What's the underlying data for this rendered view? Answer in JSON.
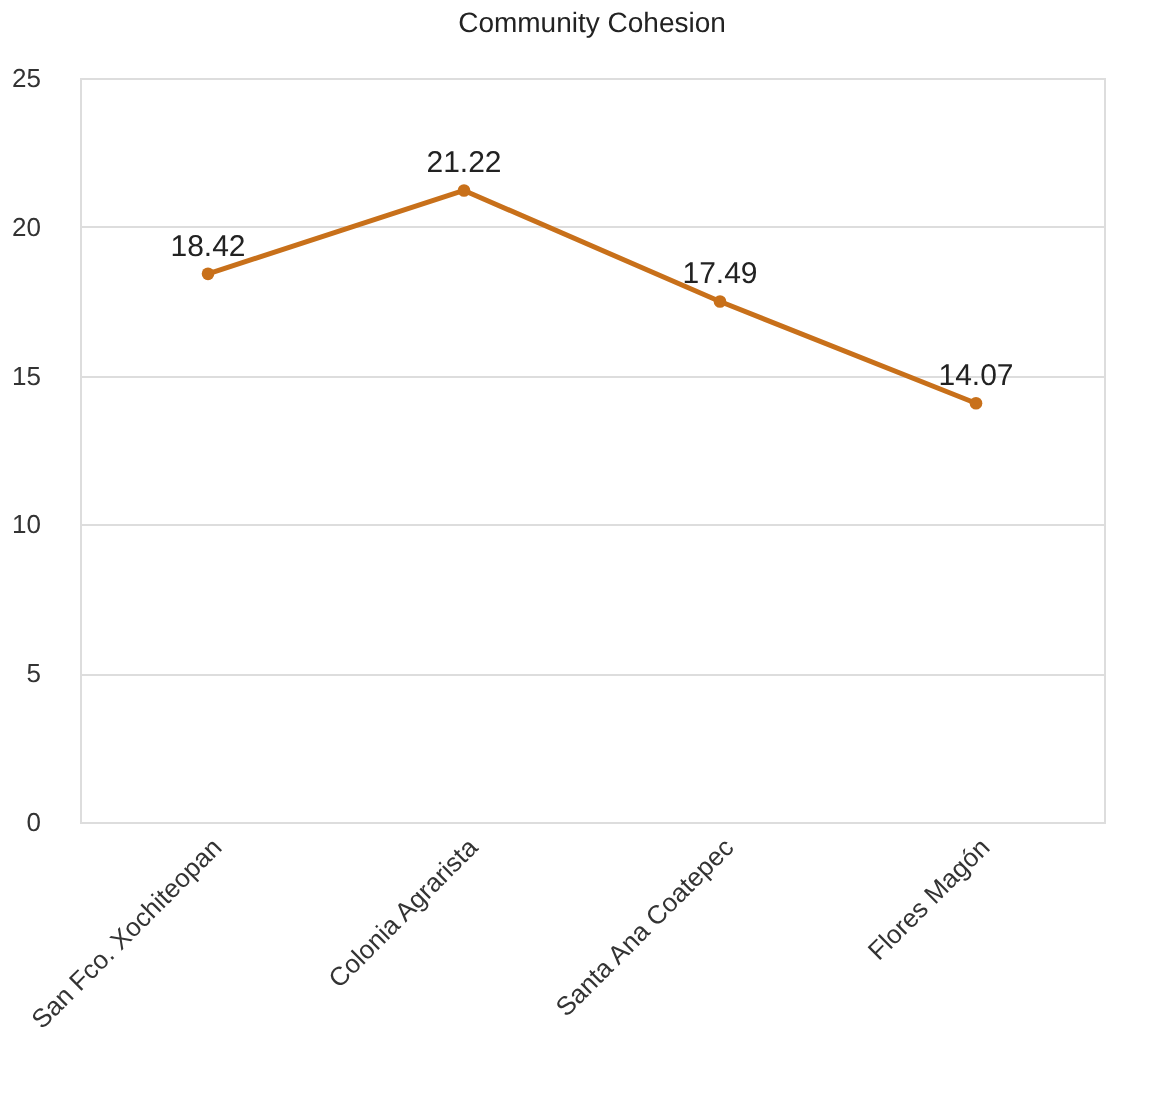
{
  "chart_data": {
    "type": "line",
    "title": "Community Cohesion",
    "categories": [
      "San Fco. Xochiteopan",
      "Colonia Agrarista",
      "Santa Ana Coatepec",
      "Flores Magón"
    ],
    "series": [
      {
        "color": "#c8701a",
        "values": [
          18.42,
          21.22,
          17.49,
          14.07
        ]
      }
    ],
    "ylim": [
      0,
      25
    ],
    "yticks": [
      0,
      5,
      10,
      15,
      20,
      25
    ],
    "grid": "y",
    "data_labels": true,
    "marker": "circle",
    "line_style": "solid",
    "legend": false
  }
}
